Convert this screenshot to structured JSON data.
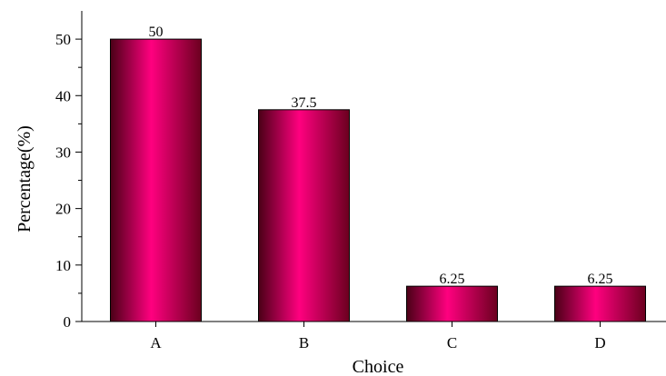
{
  "chart_data": {
    "type": "bar",
    "title": "",
    "xlabel": "Choice",
    "ylabel": "Percentage(%)",
    "categories": [
      "A",
      "B",
      "C",
      "D"
    ],
    "values": [
      50,
      37.5,
      6.25,
      6.25
    ],
    "value_labels": [
      "50",
      "37.5",
      "6.25",
      "6.25"
    ],
    "ylim": [
      0,
      55
    ],
    "y_major_ticks": [
      0,
      10,
      20,
      30,
      40,
      50
    ],
    "y_minor_ticks": [
      5,
      15,
      25,
      35,
      45
    ],
    "grid": false,
    "bar_colors": {
      "edge": "#4a0016",
      "mid": "#ff007f",
      "dark": "#6b001f"
    }
  }
}
